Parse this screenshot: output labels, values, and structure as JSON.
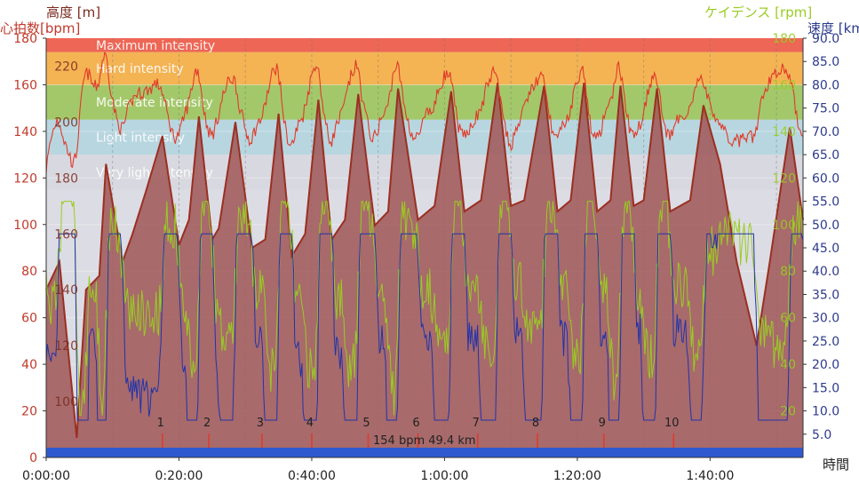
{
  "chart_data": {
    "type": "line",
    "title": "",
    "titles": {
      "altitude": "高度 [m]",
      "heart_rate": "心拍数[bpm]",
      "cadence": "ケイデンス [rpm]",
      "speed": "速度 [km/h]",
      "time": "時間"
    },
    "hr_axis": {
      "range": [
        0,
        180
      ],
      "ticks": [
        "0",
        "20",
        "40",
        "60",
        "80",
        "100",
        "120",
        "140",
        "160",
        "180"
      ]
    },
    "alt_axis": {
      "range": [
        80,
        230
      ],
      "ticks": [
        "100",
        "120",
        "140",
        "160",
        "180",
        "200",
        "220"
      ]
    },
    "cad_axis": {
      "range": [
        0,
        180
      ],
      "ticks": [
        "20",
        "40",
        "60",
        "80",
        "100",
        "120",
        "140",
        "160",
        "180"
      ]
    },
    "speed_axis": {
      "range": [
        0,
        90
      ],
      "ticks": [
        "5.0",
        "10.0",
        "15.0",
        "20.0",
        "25.0",
        "30.0",
        "35.0",
        "40.0",
        "45.0",
        "50.0",
        "55.0",
        "60.0",
        "65.0",
        "70.0",
        "75.0",
        "80.0",
        "85.0",
        "90.0"
      ]
    },
    "time_axis": {
      "range_min": [
        0,
        114
      ],
      "ticks": [
        "0:00:00",
        "0:20:00",
        "0:40:00",
        "1:00:00",
        "1:20:00",
        "1:40:00"
      ],
      "tick_minutes": [
        0,
        20,
        40,
        60,
        80,
        100
      ]
    },
    "zones": [
      {
        "name": "Maximum intensity",
        "from": 174,
        "to": 180,
        "color": "#ee6655"
      },
      {
        "name": "Hard intensity",
        "from": 160,
        "to": 174,
        "color": "#f4b454"
      },
      {
        "name": "Moderate intensity",
        "from": 145,
        "to": 160,
        "color": "#a3c86a"
      },
      {
        "name": "Light intensity",
        "from": 130,
        "to": 145,
        "color": "#b8d6e0"
      },
      {
        "name": "Very light intensity",
        "from": 115,
        "to": 130,
        "color": "#d8d8e0"
      }
    ],
    "altitude_profile": {
      "minutes": [
        0,
        2,
        4.6,
        6,
        8,
        9,
        11.5,
        13,
        15,
        17.5,
        20,
        21.5,
        23,
        25,
        26,
        28.5,
        31,
        33,
        35,
        37,
        39,
        41,
        43,
        45,
        47,
        49.5,
        51.5,
        53,
        56,
        58.5,
        61,
        63,
        65.5,
        68,
        70,
        72,
        75,
        77,
        79,
        81,
        83,
        85,
        86.5,
        88.5,
        90,
        92,
        94,
        97,
        99,
        101.5,
        104,
        107,
        109,
        112,
        114
      ],
      "meters": [
        140,
        150,
        87,
        140,
        145,
        185,
        150,
        160,
        175,
        195,
        156,
        165,
        202,
        158,
        162,
        200,
        155,
        158,
        203,
        152,
        160,
        208,
        158,
        165,
        210,
        163,
        168,
        212,
        165,
        170,
        211,
        168,
        172,
        214,
        170,
        172,
        213,
        168,
        172,
        214,
        168,
        172,
        213,
        170,
        172,
        212,
        168,
        172,
        206,
        185,
        150,
        120,
        150,
        198,
        165
      ]
    },
    "laps": [
      "1",
      "2",
      "3",
      "4",
      "5",
      "6",
      "7",
      "8",
      "9",
      "10"
    ],
    "lap_minutes": [
      17.5,
      24.5,
      32.5,
      40,
      48.5,
      56,
      65,
      74,
      84,
      94.5
    ],
    "annotation": "154 bpm 49.4 km",
    "series": [
      {
        "name": "心拍数",
        "color": "#e03a2a"
      },
      {
        "name": "高度",
        "color": "#a44038"
      },
      {
        "name": "ケイデンス",
        "color": "#99cc22"
      },
      {
        "name": "速度",
        "color": "#2233aa"
      }
    ],
    "colors": {
      "background": "#dcdce4",
      "altitude_fill": "#a05a5a",
      "axis_blue": "#2f59d0"
    }
  }
}
